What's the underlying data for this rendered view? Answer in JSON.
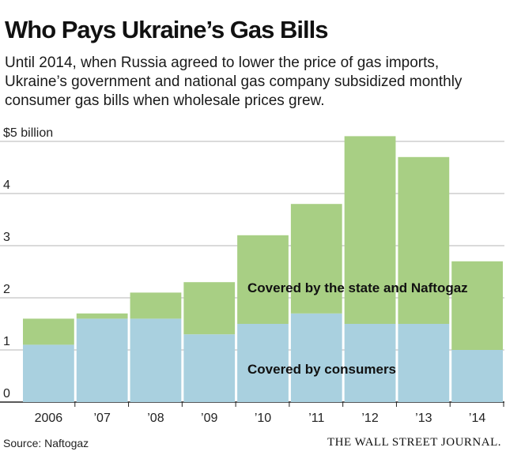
{
  "title": "Who Pays Ukraine’s Gas Bills",
  "subtitle": "Until 2014, when Russia agreed to lower the price of gas imports, Ukraine’s government and national gas company subsidized monthly consumer gas bills when wholesale prices grew.",
  "source": "Source: Naftogaz",
  "brand": "THE WALL STREET JOURNAL.",
  "colors": {
    "consumers": "#a9d0df",
    "state": "#a8cf84",
    "grid": "#b5b5b5",
    "axis": "#222222"
  },
  "chart_data": {
    "type": "bar",
    "stacked": true,
    "categories": [
      "2006",
      "’07",
      "’08",
      "’09",
      "’10",
      "’11",
      "’12",
      "’13",
      "’14"
    ],
    "series": [
      {
        "name": "Covered by consumers",
        "values": [
          1.1,
          1.6,
          1.6,
          1.3,
          1.5,
          1.7,
          1.5,
          1.5,
          1.0
        ]
      },
      {
        "name": "Covered by the state and Naftogaz",
        "values": [
          0.5,
          0.1,
          0.5,
          1.0,
          1.7,
          2.1,
          3.6,
          3.2,
          1.7
        ]
      }
    ],
    "ylim": [
      0,
      5
    ],
    "yticks": [
      0,
      1,
      2,
      3,
      4,
      5
    ],
    "ytick_labels": [
      "0",
      "1",
      "2",
      "3",
      "4",
      "$5 billion"
    ],
    "grid": true,
    "legend": "inline labels on bars"
  }
}
